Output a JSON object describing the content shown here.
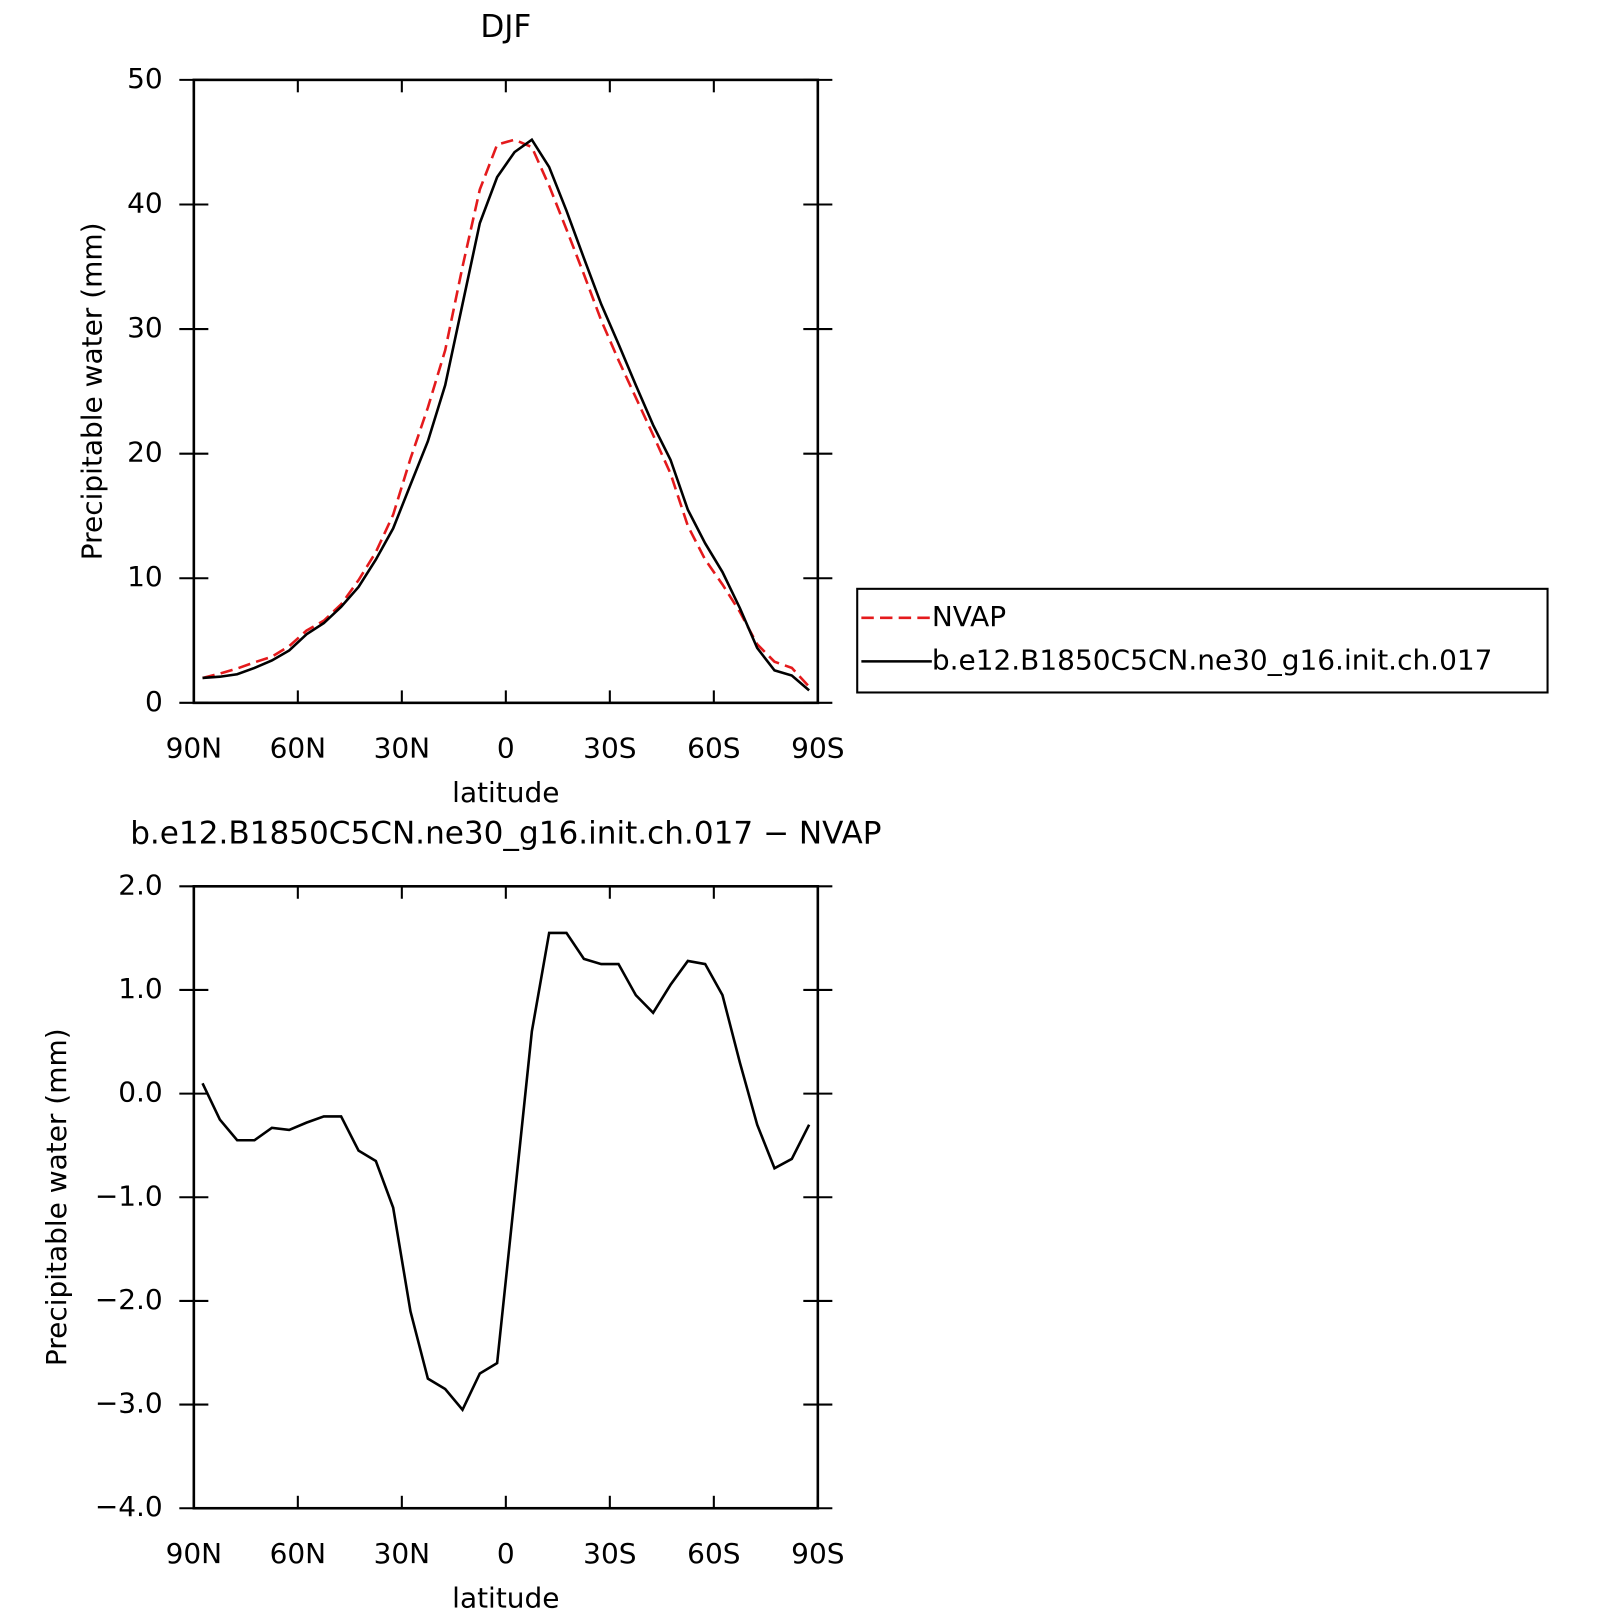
{
  "chart_data": [
    {
      "type": "line",
      "title": "DJF",
      "x_label": "latitude",
      "y_label": "Precipitable water (mm)",
      "x": [
        87.5,
        82.5,
        77.5,
        72.5,
        67.5,
        62.5,
        57.5,
        52.5,
        47.5,
        42.5,
        37.5,
        32.5,
        27.5,
        22.5,
        17.5,
        12.5,
        7.5,
        2.5,
        -2.5,
        -7.5,
        -12.5,
        -17.5,
        -22.5,
        -27.5,
        -32.5,
        -37.5,
        -42.5,
        -47.5,
        -52.5,
        -57.5,
        -62.5,
        -67.5,
        -72.5,
        -77.5,
        -82.5,
        -87.5
      ],
      "series": [
        {
          "name": "NVAP",
          "color": "#e41a1c",
          "line_style": "dashed",
          "values": [
            2.0,
            2.35,
            2.75,
            3.25,
            3.7,
            4.55,
            5.8,
            6.6,
            7.9,
            9.85,
            12.1,
            15.1,
            19.6,
            23.7,
            28.3,
            35.0,
            41.2,
            44.8,
            45.2,
            44.6,
            41.5,
            38.0,
            34.4,
            30.7,
            27.5,
            24.5,
            21.5,
            18.4,
            14.2,
            11.5,
            9.5,
            7.3,
            4.7,
            3.3,
            2.8,
            1.3
          ]
        },
        {
          "name": "b.e12.B1850C5CN.ne30_g16.init.ch.017",
          "color": "#000000",
          "line_style": "solid",
          "values": [
            2.0,
            2.1,
            2.3,
            2.8,
            3.4,
            4.2,
            5.5,
            6.4,
            7.7,
            9.3,
            11.5,
            14.0,
            17.5,
            21.0,
            25.5,
            32.0,
            38.5,
            42.2,
            44.2,
            45.2,
            43.0,
            39.5,
            35.7,
            32.0,
            28.8,
            25.5,
            22.3,
            19.5,
            15.5,
            12.8,
            10.5,
            7.6,
            4.4,
            2.6,
            2.2,
            1.0
          ]
        }
      ],
      "xlim": [
        90,
        -90
      ],
      "xticks": [
        {
          "value": 90,
          "label": "90N"
        },
        {
          "value": 60,
          "label": "60N"
        },
        {
          "value": 30,
          "label": "30N"
        },
        0,
        {
          "value": -30,
          "label": "30S"
        },
        {
          "value": -60,
          "label": "60S"
        },
        {
          "value": -90,
          "label": "90S"
        }
      ],
      "ylim": [
        0,
        50
      ],
      "yticks": [
        0,
        10,
        20,
        30,
        40,
        50
      ],
      "legend": "right"
    },
    {
      "type": "line",
      "title": "b.e12.B1850C5CN.ne30_g16.init.ch.017 − NVAP",
      "x_label": "latitude",
      "y_label": "Precipitable water (mm)",
      "x": [
        87.5,
        82.5,
        77.5,
        72.5,
        67.5,
        62.5,
        57.5,
        52.5,
        47.5,
        42.5,
        37.5,
        32.5,
        27.5,
        22.5,
        17.5,
        12.5,
        7.5,
        2.5,
        -2.5,
        -7.5,
        -12.5,
        -17.5,
        -22.5,
        -27.5,
        -32.5,
        -37.5,
        -42.5,
        -47.5,
        -52.5,
        -57.5,
        -62.5,
        -67.5,
        -72.5,
        -77.5,
        -82.5,
        -87.5
      ],
      "values": [
        0.1,
        -0.25,
        -0.45,
        -0.45,
        -0.33,
        -0.35,
        -0.28,
        -0.22,
        -0.22,
        -0.55,
        -0.65,
        -1.1,
        -2.1,
        -2.75,
        -2.85,
        -3.05,
        -2.7,
        -2.6,
        -1.0,
        0.6,
        1.55,
        1.55,
        1.3,
        1.25,
        1.25,
        0.95,
        0.78,
        1.05,
        1.28,
        1.25,
        0.95,
        0.3,
        -0.3,
        -0.72,
        -0.63,
        -0.3
      ],
      "color": "#000000",
      "xlim": [
        90,
        -90
      ],
      "xticks": [
        {
          "value": 90,
          "label": "90N"
        },
        {
          "value": 60,
          "label": "60N"
        },
        {
          "value": 30,
          "label": "30N"
        },
        0,
        {
          "value": -30,
          "label": "30S"
        },
        {
          "value": -60,
          "label": "60S"
        },
        {
          "value": -90,
          "label": "90S"
        }
      ],
      "ylim": [
        -4,
        2
      ],
      "yticks": [
        {
          "value": 2,
          "label": "2.0"
        },
        {
          "value": 1,
          "label": "1.0"
        },
        {
          "value": 0,
          "label": "0.0"
        },
        {
          "value": -1,
          "label": "−1.0"
        },
        {
          "value": -2,
          "label": "−2.0"
        },
        {
          "value": -3,
          "label": "−3.0"
        },
        {
          "value": -4,
          "label": "−4.0"
        }
      ]
    }
  ]
}
